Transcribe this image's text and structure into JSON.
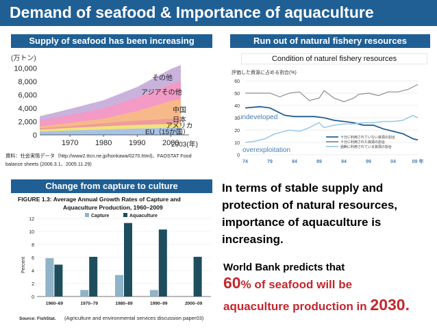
{
  "slide": {
    "title": "Demand of seafood & Importance of aquaculture",
    "colors": {
      "title_bg": "#1f5f94",
      "accent_red": "#c1272d"
    }
  },
  "panel1": {
    "header": "Supply of seafood has been increasing",
    "chart_data": {
      "type": "area",
      "y_unit": "(万トン)",
      "y_ticks": [
        "0",
        "2,000",
        "4,000",
        "6,000",
        "8,000",
        "10,000"
      ],
      "x_ticks": [
        "1970",
        "1980",
        "1990",
        "2000"
      ],
      "x_end_label": "2003(年)",
      "ylim": [
        0,
        11000
      ],
      "series_labels": [
        "その他",
        "アジアその他",
        "中国",
        "日本",
        "アメリカ",
        "EU（15か国）"
      ],
      "source_line1": "資料：社会実情データ（http://www2.ttcn.ne.jp/honkawa/0270.html)、FAOSTAT Food",
      "source_line2": "balance sheets (2006.3.1、2005.11.29)"
    }
  },
  "panel2": {
    "header": "Run out of natural fishery resources",
    "subtitle": "Condition of naturel fishery resources",
    "chart_data": {
      "type": "line",
      "ylabel": "評価した資源に占める割合(%)",
      "y_ticks": [
        "0",
        "10",
        "20",
        "30",
        "40",
        "50",
        "60"
      ],
      "x_ticks": [
        "74",
        "79",
        "84",
        "89",
        "94",
        "99",
        "04",
        "09 年"
      ],
      "ylim": [
        0,
        60
      ],
      "legend": [
        "十分に利用されていない資源の割合",
        "十分に利用された資源の割合",
        "過剰に利用されている資源の割合"
      ],
      "annotations": {
        "undeveloped": "undeveloped",
        "overexploitation": "overexploitation"
      }
    }
  },
  "panel3": {
    "header": "Change from capture to culture",
    "figure_title_1": "FIGURE 1.3: Average Annual Growth Rates of Capture and",
    "figure_title_2": "Aquaculture Production, 1960–2009",
    "caption": "(Agriculture and environmental services discussion paper03)",
    "source": "Source: FishStat.",
    "chart_data": {
      "type": "bar",
      "ylabel": "Percent",
      "categories": [
        "1960–69",
        "1970–79",
        "1980–89",
        "1990–99",
        "2000–09"
      ],
      "y_ticks": [
        "0",
        "2",
        "4",
        "6",
        "8",
        "10",
        "12"
      ],
      "ylim": [
        0,
        12
      ],
      "series": [
        {
          "name": "Capture",
          "values": [
            5.9,
            1.0,
            3.3,
            1.0,
            0.0
          ]
        },
        {
          "name": "Aquaculture",
          "values": [
            4.9,
            6.1,
            11.3,
            10.3,
            6.1
          ]
        }
      ]
    }
  },
  "main_text": {
    "line1": "In terms of  stable supply and",
    "line2": "protection of natural resources,",
    "line3": "importance of aquaculture is",
    "line4": "increasing."
  },
  "prediction": {
    "line1": "World Bank predicts that",
    "big1": "60",
    "line2": "% of seafood will be",
    "line3": "aquaculture production in ",
    "big2": "2030."
  }
}
